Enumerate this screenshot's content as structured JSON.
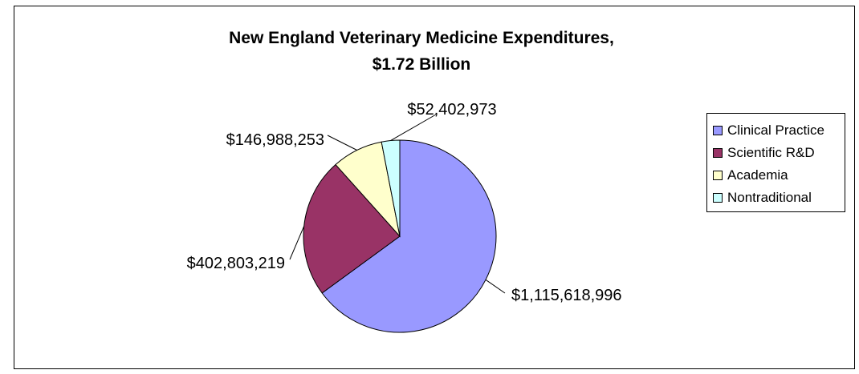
{
  "chart_data": {
    "type": "pie",
    "title_lines": [
      "New England Veterinary Medicine Expenditures,",
      "$1.72 Billion"
    ],
    "categories": [
      "Clinical Practice",
      "Scientific R&D",
      "Academia",
      "Nontraditional"
    ],
    "values": [
      1115618996,
      402803219,
      146988253,
      52402973
    ],
    "data_labels": [
      "$1,115,618,996",
      "$402,803,219",
      "$146,988,253",
      "$52,402,973"
    ],
    "colors": [
      "#9999ff",
      "#993366",
      "#ffffcc",
      "#ccffff"
    ],
    "start_angle_deg": 0,
    "direction": "clockwise",
    "legend_position": "right"
  }
}
